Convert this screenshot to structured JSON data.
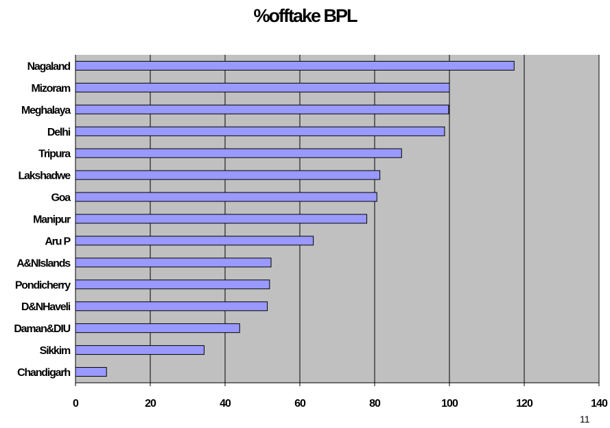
{
  "chart_data": {
    "type": "bar",
    "orientation": "horizontal",
    "title": "%offtake BPL",
    "categories": [
      "Nagaland",
      "Mizoram",
      "Meghalaya",
      "Delhi",
      "Tripura",
      "Lakshadwe",
      "Goa",
      "Manipur",
      "Aru P",
      "A&NIslands",
      "Pondicherry",
      "D&NHaveli",
      "Daman&DIU",
      "Sikkim",
      "Chandigarh"
    ],
    "values": [
      117.3,
      100,
      99.8,
      98.7,
      87.2,
      81.4,
      80.6,
      77.9,
      63.6,
      52.3,
      51.9,
      51.3,
      43.9,
      34.4,
      8.3
    ],
    "xlim": [
      0,
      140
    ],
    "ticks": [
      0,
      20,
      40,
      60,
      80,
      100,
      120,
      140
    ],
    "tick_labels": [
      "0",
      "20",
      "40",
      "60",
      "80",
      "100",
      "120",
      "140"
    ],
    "grid": true,
    "legend": "none",
    "colors": {
      "bar_fill": "#9999ff",
      "bar_stroke": "#000000",
      "plot_bg": "#c0c0c0",
      "grid": "#000000"
    }
  },
  "page_number": "11"
}
